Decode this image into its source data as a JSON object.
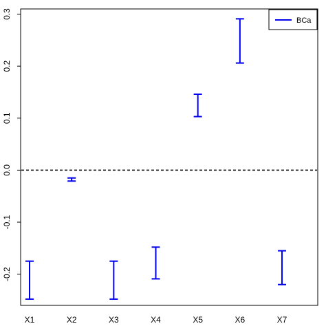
{
  "chart_data": {
    "type": "errorbar",
    "categories": [
      "X1",
      "X2",
      "X3",
      "X4",
      "X5",
      "X6",
      "X7"
    ],
    "series": [
      {
        "name": "BCa",
        "lower": [
          -0.248,
          -0.021,
          -0.248,
          -0.209,
          0.103,
          0.206,
          -0.22
        ],
        "upper": [
          -0.175,
          -0.015,
          -0.175,
          -0.148,
          0.146,
          0.291,
          -0.155
        ],
        "color": "#0000ee"
      }
    ],
    "ylim": [
      -0.26,
      0.31
    ],
    "yticks": [
      -0.2,
      -0.1,
      0.0,
      0.1,
      0.2,
      0.3
    ],
    "ytick_labels": [
      "-0.2",
      "-0.1",
      "0.0",
      "0.1",
      "0.2",
      "0.3"
    ],
    "reference_line": {
      "y": 0,
      "style": "dashed",
      "color": "#000000"
    },
    "legend": {
      "position": "top-right"
    },
    "grid": false
  }
}
